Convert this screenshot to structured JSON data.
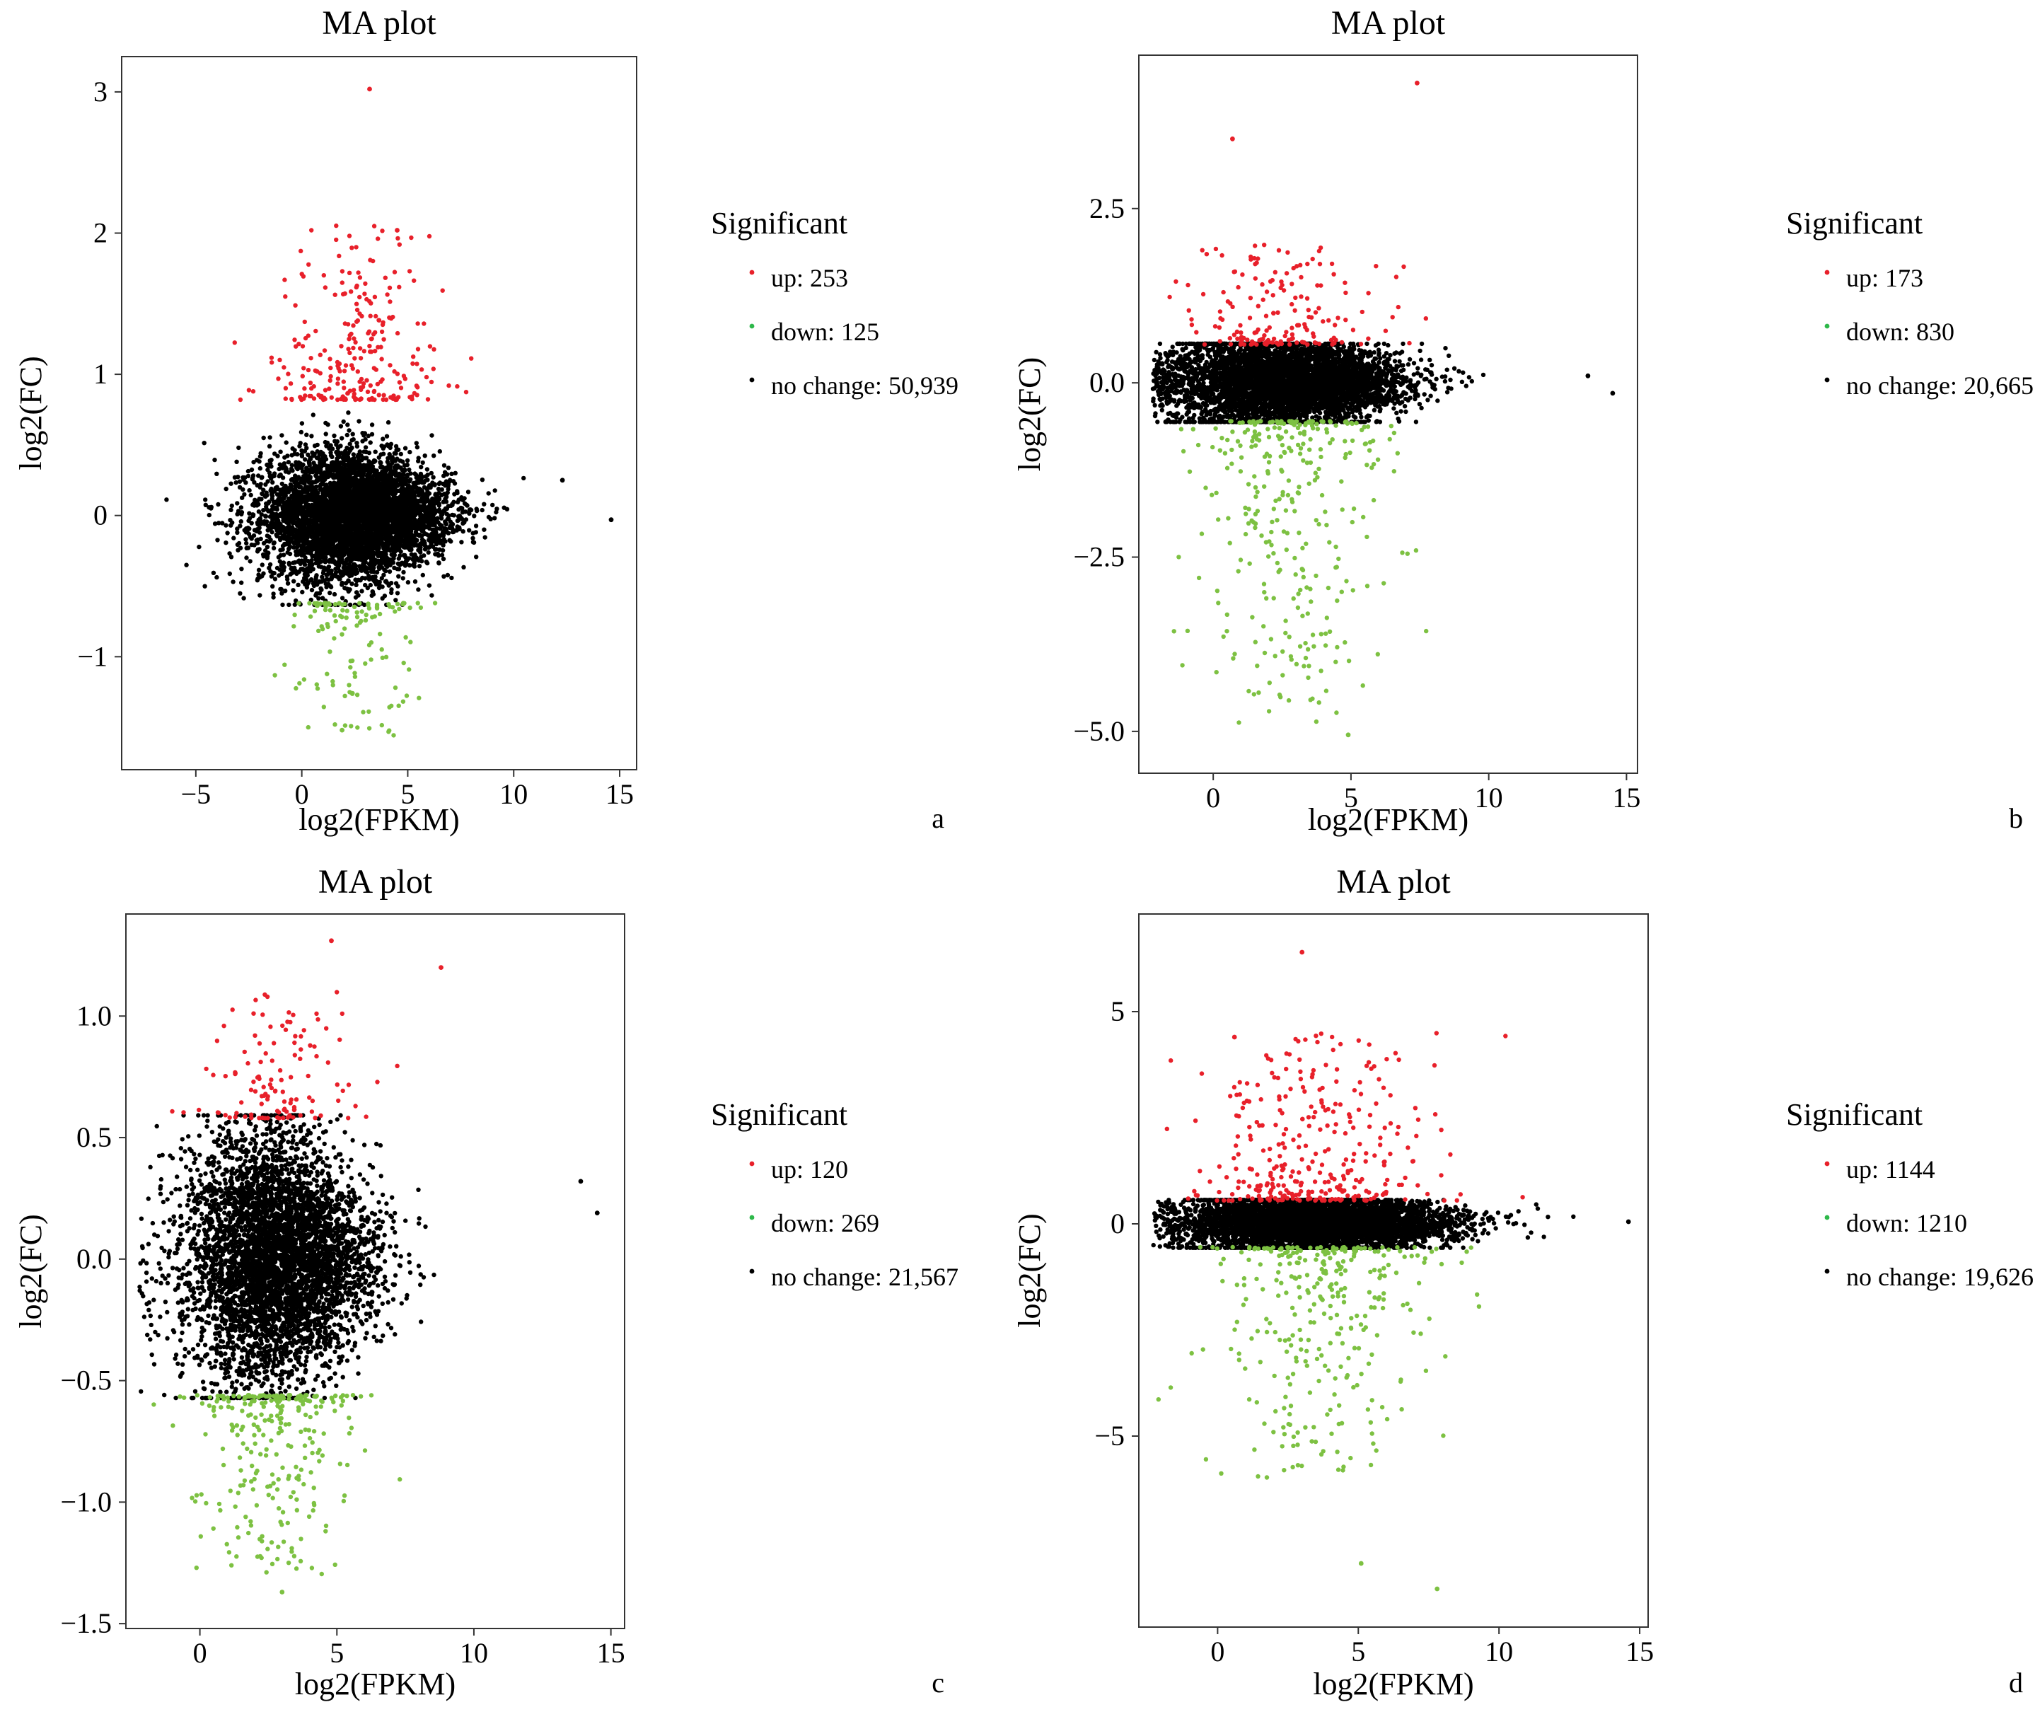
{
  "figure": {
    "panels": [
      "a",
      "b",
      "c",
      "d"
    ]
  },
  "chart_data": [
    {
      "panel": "a",
      "type": "scatter",
      "title": "MA plot",
      "xlabel": "log2(FPKM)",
      "ylabel": "log2(FC)",
      "xlim": [
        -8.5,
        15.8
      ],
      "ylim": [
        -1.8,
        3.25
      ],
      "xticks": [
        -5,
        0,
        5,
        10,
        15
      ],
      "xtick_labels": [
        "−5",
        "0",
        "5",
        "10",
        "15"
      ],
      "yticks": [
        -1,
        0,
        1,
        2,
        3
      ],
      "ytick_labels": [
        "−1",
        "0",
        "1",
        "2",
        "3"
      ],
      "legend": {
        "title": "Significant",
        "entries": [
          {
            "label": "up: 253",
            "color": "#e8202a"
          },
          {
            "label": "down: 125",
            "color": "#2eb84a"
          },
          {
            "label": "no change: 50,939",
            "color": "#000000"
          }
        ]
      },
      "series": [
        {
          "name": "up",
          "count": 253,
          "color": "#e8202a"
        },
        {
          "name": "down",
          "count": 125,
          "color": "#7dc142"
        },
        {
          "name": "no change",
          "count": 50939,
          "color": "#000000"
        }
      ],
      "notable_points": [
        [
          3.2,
          3.02
        ],
        [
          4.5,
          2.02
        ],
        [
          14.6,
          -0.03
        ],
        [
          12.3,
          0.25
        ],
        [
          1.9,
          -1.52
        ]
      ]
    },
    {
      "panel": "b",
      "type": "scatter",
      "title": "MA plot",
      "xlabel": "log2(FPKM)",
      "ylabel": "log2(FC)",
      "xlim": [
        -2.7,
        15.4
      ],
      "ylim": [
        -5.6,
        4.7
      ],
      "xticks": [
        0,
        5,
        10,
        15
      ],
      "xtick_labels": [
        "0",
        "5",
        "10",
        "15"
      ],
      "yticks": [
        -5,
        -2.5,
        0,
        2.5
      ],
      "ytick_labels": [
        "−5.0",
        "−2.5",
        "0.0",
        "2.5"
      ],
      "legend": {
        "title": "Significant",
        "entries": [
          {
            "label": "up: 173",
            "color": "#e8202a"
          },
          {
            "label": "down: 830",
            "color": "#2eb84a"
          },
          {
            "label": "no change: 20,665",
            "color": "#000000"
          }
        ]
      },
      "series": [
        {
          "name": "up",
          "count": 173,
          "color": "#e8202a"
        },
        {
          "name": "down",
          "count": 830,
          "color": "#7dc142"
        },
        {
          "name": "no change",
          "count": 20665,
          "color": "#000000"
        }
      ],
      "notable_points": [
        [
          7.4,
          4.3
        ],
        [
          0.7,
          3.5
        ],
        [
          14.5,
          -0.15
        ],
        [
          13.6,
          0.1
        ],
        [
          4.9,
          -5.05
        ]
      ]
    },
    {
      "panel": "c",
      "type": "scatter",
      "title": "MA plot",
      "xlabel": "log2(FPKM)",
      "ylabel": "log2(FC)",
      "xlim": [
        -2.7,
        15.5
      ],
      "ylim": [
        -1.52,
        1.42
      ],
      "xticks": [
        0,
        5,
        10,
        15
      ],
      "xtick_labels": [
        "0",
        "5",
        "10",
        "15"
      ],
      "yticks": [
        -1.5,
        -1.0,
        -0.5,
        0.0,
        0.5,
        1.0
      ],
      "ytick_labels": [
        "−1.5",
        "−1.0",
        "−0.5",
        "0.0",
        "0.5",
        "1.0"
      ],
      "legend": {
        "title": "Significant",
        "entries": [
          {
            "label": "up: 120",
            "color": "#e8202a"
          },
          {
            "label": "down: 269",
            "color": "#2eb84a"
          },
          {
            "label": "no change: 21,567",
            "color": "#000000"
          }
        ]
      },
      "series": [
        {
          "name": "up",
          "count": 120,
          "color": "#e8202a"
        },
        {
          "name": "down",
          "count": 269,
          "color": "#7dc142"
        },
        {
          "name": "no change",
          "count": 21567,
          "color": "#000000"
        }
      ],
      "notable_points": [
        [
          4.8,
          1.31
        ],
        [
          8.8,
          1.2
        ],
        [
          14.5,
          0.19
        ],
        [
          3.0,
          -1.37
        ],
        [
          13.9,
          0.32
        ]
      ]
    },
    {
      "panel": "d",
      "type": "scatter",
      "title": "MA plot",
      "xlabel": "log2(FPKM)",
      "ylabel": "log2(FC)",
      "xlim": [
        -2.8,
        15.3
      ],
      "ylim": [
        -9.5,
        7.3
      ],
      "xticks": [
        0,
        5,
        10,
        15
      ],
      "xtick_labels": [
        "0",
        "5",
        "10",
        "15"
      ],
      "yticks": [
        -5,
        0,
        5
      ],
      "ytick_labels": [
        "−5",
        "0",
        "5"
      ],
      "legend": {
        "title": "Significant",
        "entries": [
          {
            "label": "up: 1144",
            "color": "#e8202a"
          },
          {
            "label": "down: 1210",
            "color": "#2eb84a"
          },
          {
            "label": "no change: 19,626",
            "color": "#000000"
          }
        ]
      },
      "series": [
        {
          "name": "up",
          "count": 1144,
          "color": "#e8202a"
        },
        {
          "name": "down",
          "count": 1210,
          "color": "#7dc142"
        },
        {
          "name": "no change",
          "count": 19626,
          "color": "#000000"
        }
      ],
      "notable_points": [
        [
          3.0,
          6.4
        ],
        [
          7.8,
          -8.6
        ],
        [
          14.6,
          0.05
        ],
        [
          5.1,
          -8.0
        ],
        [
          0.6,
          4.4
        ]
      ]
    }
  ]
}
